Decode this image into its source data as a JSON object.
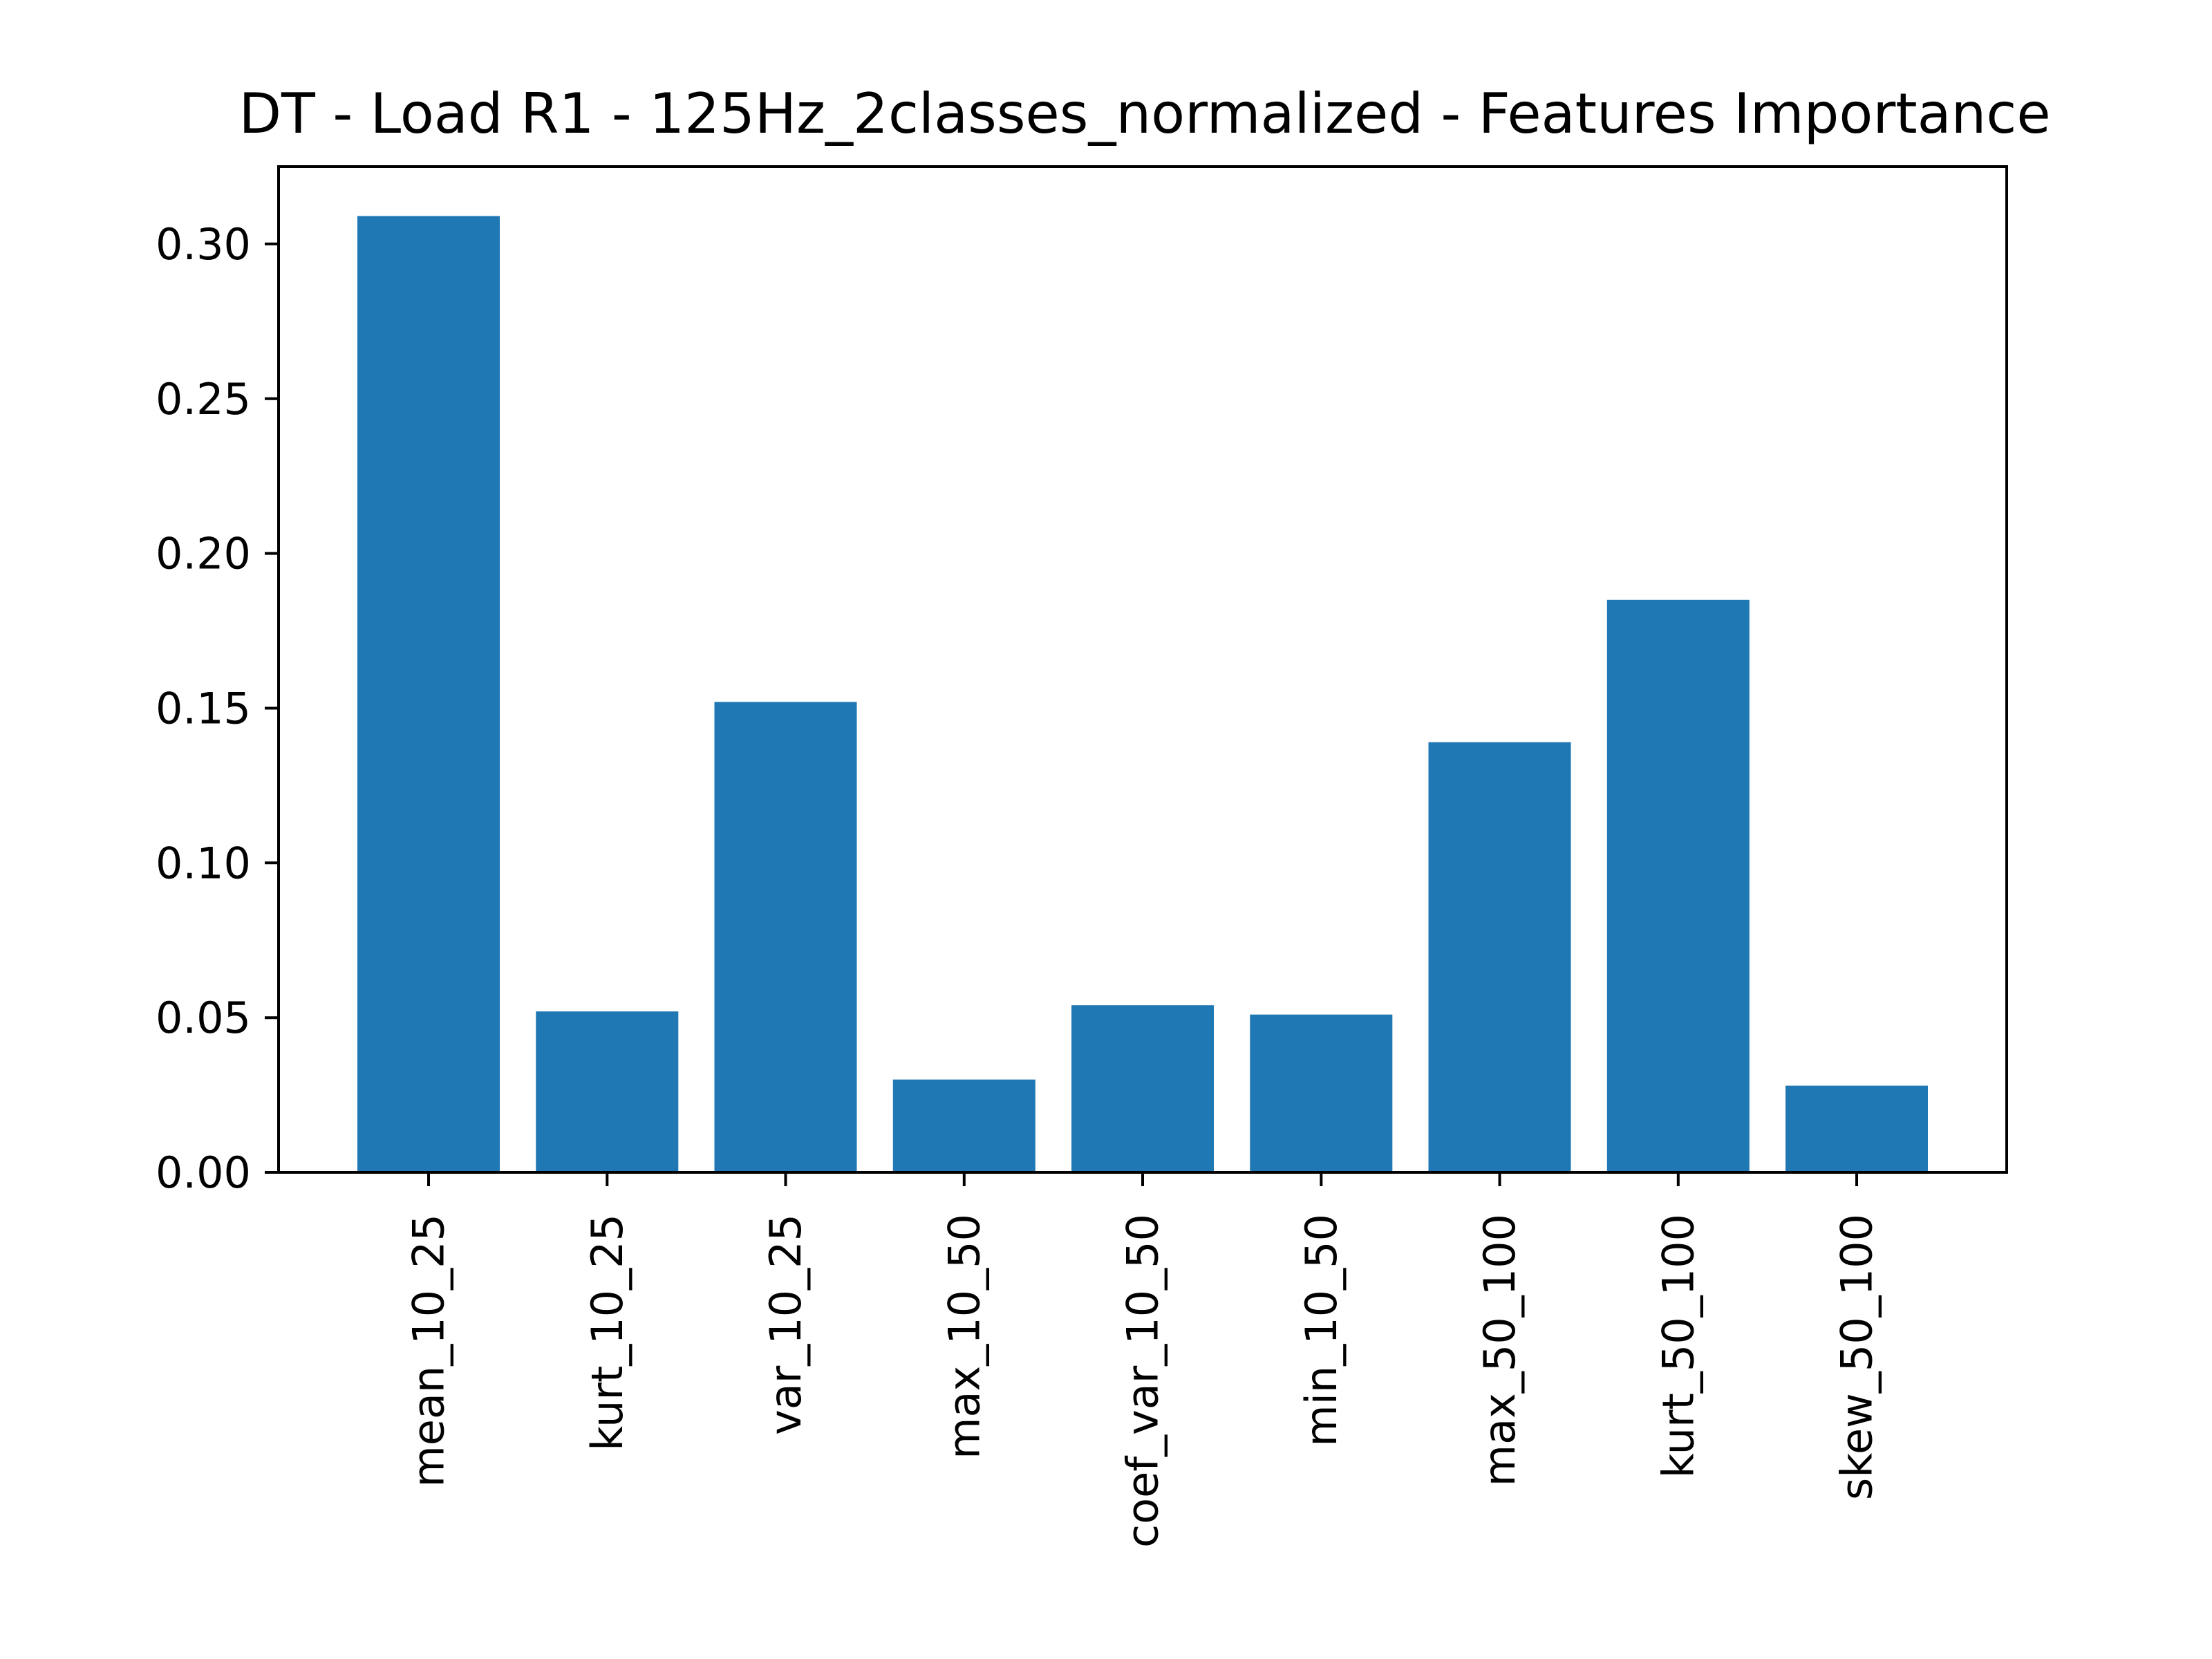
{
  "chart_data": {
    "type": "bar",
    "title": "DT - Load R1 - 125Hz_2classes_normalized - Features Importance",
    "xlabel": "",
    "ylabel": "",
    "categories": [
      "mean_10_25",
      "kurt_10_25",
      "var_10_25",
      "max_10_50",
      "coef_var_10_50",
      "min_10_50",
      "max_50_100",
      "kurt_50_100",
      "skew_50_100"
    ],
    "values": [
      0.309,
      0.052,
      0.152,
      0.03,
      0.054,
      0.051,
      0.139,
      0.185,
      0.028
    ],
    "ylim": [
      0,
      0.325
    ],
    "yticks": [
      "0.00",
      "0.05",
      "0.10",
      "0.15",
      "0.20",
      "0.25",
      "0.30"
    ],
    "bar_color": "#1f77b4",
    "grid": false,
    "legend": "none"
  }
}
